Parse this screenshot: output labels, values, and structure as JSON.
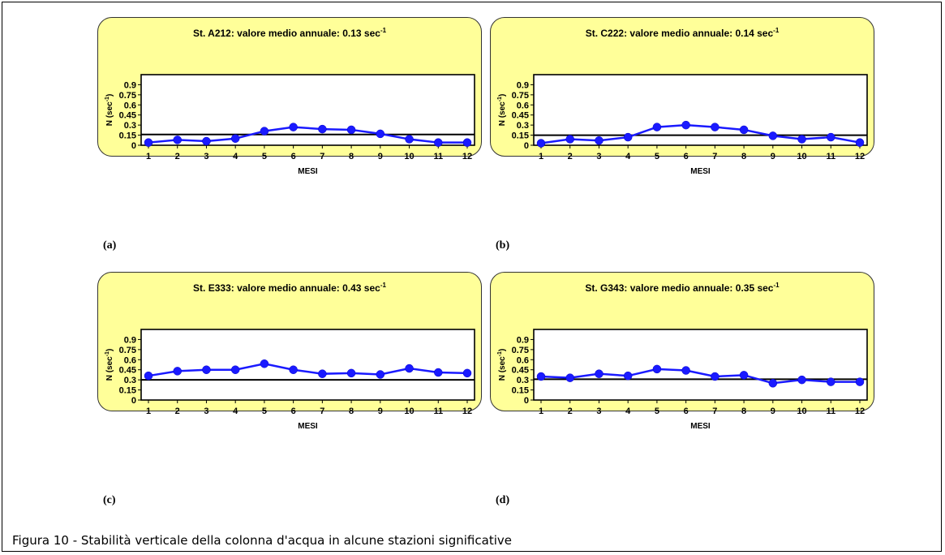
{
  "caption": "Figura 10 - Stabilità verticale della colonna d'acqua in alcune stazioni significative",
  "chart_data": [
    {
      "type": "line",
      "panel_label": "(a)",
      "title": "St. A212: valore medio annuale: 0.13 sec",
      "title_sup": "-1",
      "xlabel": "MESI",
      "ylabel": "N (sec",
      "ylabel_sup": "-1",
      "ylabel_end": ")",
      "categories": [
        "1",
        "2",
        "3",
        "4",
        "5",
        "6",
        "7",
        "8",
        "9",
        "10",
        "11",
        "12"
      ],
      "ytick_labels": [
        "0",
        "0.15",
        "0.3",
        "0.45",
        "0.6",
        "0.75",
        "0.9"
      ],
      "ylim": [
        0,
        1.05
      ],
      "reference_line": 0.16,
      "series": [
        {
          "values": [
            0.04,
            0.08,
            0.06,
            0.1,
            0.21,
            0.27,
            0.24,
            0.23,
            0.17,
            0.09,
            0.04,
            0.04
          ]
        }
      ],
      "series_color": "#1a1aff"
    },
    {
      "type": "line",
      "panel_label": "(b)",
      "title": "St. C222: valore medio annuale: 0.14 sec",
      "title_sup": "-1",
      "xlabel": "MESI",
      "ylabel": "N (sec",
      "ylabel_sup": "-1",
      "ylabel_end": ")",
      "categories": [
        "1",
        "2",
        "3",
        "4",
        "5",
        "6",
        "7",
        "8",
        "9",
        "10",
        "11",
        "12"
      ],
      "ytick_labels": [
        "0",
        "0.15",
        "0.3",
        "0.45",
        "0.6",
        "0.75",
        "0.9"
      ],
      "ylim": [
        0,
        1.05
      ],
      "reference_line": 0.15,
      "series": [
        {
          "values": [
            0.03,
            0.09,
            0.07,
            0.12,
            0.27,
            0.3,
            0.27,
            0.23,
            0.14,
            0.09,
            0.12,
            0.04
          ]
        }
      ],
      "series_color": "#1a1aff"
    },
    {
      "type": "line",
      "panel_label": "(c)",
      "title": "St. E333: valore medio annuale: 0.43 sec",
      "title_sup": "-1",
      "xlabel": "MESI",
      "ylabel": "N (sec",
      "ylabel_sup": "-1",
      "ylabel_end": ")",
      "categories": [
        "1",
        "2",
        "3",
        "4",
        "5",
        "6",
        "7",
        "8",
        "9",
        "10",
        "11",
        "12"
      ],
      "ytick_labels": [
        "0",
        "0.15",
        "0.3",
        "0.45",
        "0.6",
        "0.75",
        "0.9"
      ],
      "ylim": [
        0,
        1.05
      ],
      "reference_line": 0.3,
      "series": [
        {
          "values": [
            0.36,
            0.43,
            0.45,
            0.45,
            0.54,
            0.45,
            0.39,
            0.4,
            0.38,
            0.47,
            0.41,
            0.4
          ]
        }
      ],
      "series_color": "#1a1aff"
    },
    {
      "type": "line",
      "panel_label": "(d)",
      "title": "St. G343: valore medio annuale: 0.35 sec",
      "title_sup": "-1",
      "xlabel": "MESI",
      "ylabel": "N (sec",
      "ylabel_sup": "-1",
      "ylabel_end": ")",
      "categories": [
        "1",
        "2",
        "3",
        "4",
        "5",
        "6",
        "7",
        "8",
        "9",
        "10",
        "11",
        "12"
      ],
      "ytick_labels": [
        "0",
        "0.15",
        "0.3",
        "0.45",
        "0.6",
        "0.75",
        "0.9"
      ],
      "ylim": [
        0,
        1.05
      ],
      "reference_line": 0.31,
      "series": [
        {
          "values": [
            0.35,
            0.33,
            0.39,
            0.36,
            0.46,
            0.44,
            0.35,
            0.37,
            0.25,
            0.3,
            0.27,
            0.27
          ]
        }
      ],
      "series_color": "#1a1aff"
    }
  ]
}
